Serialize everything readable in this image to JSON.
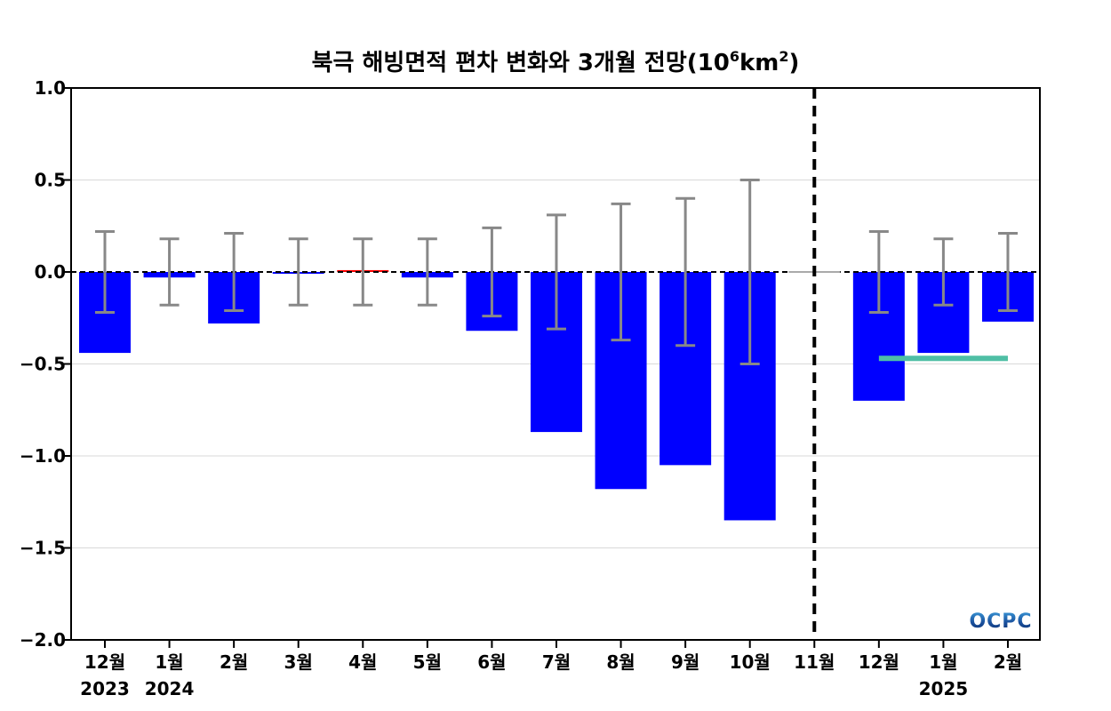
{
  "chart_data": {
    "type": "bar",
    "title": "북극 해빙면적 편차 변화와 3개월 전망(10⁶km²)",
    "title_main": "북극 해빙면적 편차 변화와 3개월 전망(10",
    "title_exp1": "6",
    "title_mid": "km",
    "title_exp2": "2",
    "title_end": ")",
    "xlabel": "",
    "ylabel": "",
    "ylim": [
      -2.0,
      1.0
    ],
    "yticks": [
      "1.0",
      "0.5",
      "0.0",
      "−0.5",
      "−1.0",
      "−1.5",
      "−2.0"
    ],
    "ytick_values": [
      1.0,
      0.5,
      0.0,
      -0.5,
      -1.0,
      -1.5,
      -2.0
    ],
    "grid": true,
    "categories": [
      "12월",
      "1월",
      "2월",
      "3월",
      "4월",
      "5월",
      "6월",
      "7월",
      "8월",
      "9월",
      "10월",
      "11월",
      "12월",
      "1월",
      "2월"
    ],
    "year_labels": [
      {
        "index": 0,
        "text": "2023"
      },
      {
        "index": 1,
        "text": "2024"
      },
      {
        "index": 13,
        "text": "2025"
      }
    ],
    "values": [
      -0.44,
      -0.03,
      -0.28,
      -0.01,
      0.01,
      -0.03,
      -0.32,
      -0.87,
      -1.18,
      -1.05,
      -1.35,
      0.0,
      -0.7,
      -0.44,
      -0.27
    ],
    "error_half_width": [
      0.22,
      0.18,
      0.21,
      0.18,
      0.18,
      0.18,
      0.24,
      0.31,
      0.37,
      0.4,
      0.5,
      null,
      0.22,
      0.18,
      0.21
    ],
    "bar_colors": [
      "#0000ff",
      "#0000ff",
      "#0000ff",
      "#0000ff",
      "#ff0000",
      "#0000ff",
      "#0000ff",
      "#0000ff",
      "#0000ff",
      "#0000ff",
      "#0000ff",
      "#0000ff",
      "#0000ff",
      "#0000ff",
      "#0000ff"
    ],
    "forecast_divider_after_index": 11,
    "forecast_mean": {
      "value": -0.47,
      "from_index": 12,
      "to_index": 14,
      "color": "#4fbfa5"
    },
    "error_bar_color": "#888888",
    "colors": {
      "negative": "#0000ff",
      "positive": "#ff0000",
      "zero_line": "#000000"
    }
  },
  "logo": {
    "text": "OCPC",
    "color": "#1a5aa0"
  }
}
